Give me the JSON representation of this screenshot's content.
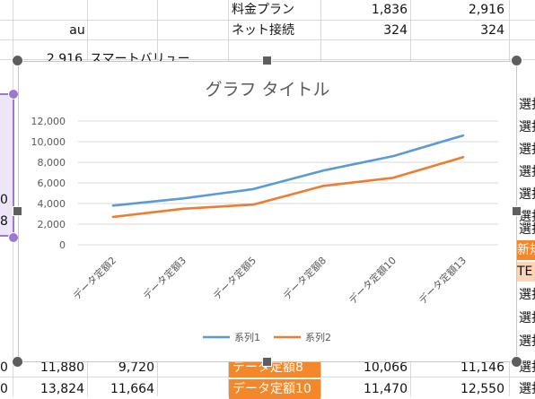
{
  "sheet": {
    "top_rows": [
      {
        "c3": "料金プラン",
        "c4": "1,836",
        "c5": "2,916"
      },
      {
        "c1": "au",
        "c3": "ネット接続",
        "c4": "324",
        "c5": "324"
      }
    ],
    "partial_row": {
      "c1": "2,916",
      "c2": "スマートバリュー"
    },
    "left_fragments": [
      "0",
      "8"
    ],
    "right_column": [
      "選択",
      "選択",
      "選択",
      "選択",
      "選択",
      "選択",
      "選択",
      "新規",
      "TE",
      "選択",
      "選択",
      "選択",
      "選択",
      "選択"
    ],
    "bottom_rows": [
      {
        "c0": "0",
        "c1": "11,880",
        "c2": "9,720",
        "c3": "データ定額8",
        "c4": "10,066",
        "c5": "11,146",
        "c6": "選択"
      },
      {
        "c0": "0",
        "c1": "13,824",
        "c2": "11,664",
        "c3": "データ定額10",
        "c4": "11,470",
        "c5": "12,550",
        "c6": "選択"
      }
    ]
  },
  "colors": {
    "series1": "#5b9bd5",
    "series2": "#ed7d31",
    "orange_cell": "#f4872a",
    "peach_cell": "#fbd5b5",
    "selection": "#9a7ad0"
  },
  "chart_data": {
    "type": "line",
    "title": "グラフ タイトル",
    "categories": [
      "データ定額2",
      "データ定額3",
      "データ定額5",
      "データ定額8",
      "データ定額10",
      "データ定額13"
    ],
    "series": [
      {
        "name": "系列1",
        "values": [
          3800,
          4500,
          5400,
          7200,
          8600,
          10600
        ]
      },
      {
        "name": "系列2",
        "values": [
          2700,
          3500,
          3900,
          5700,
          6500,
          8500
        ]
      }
    ],
    "yticks": [
      "12,000",
      "10,000",
      "8,000",
      "6,000",
      "4,000",
      "2,000",
      "0"
    ],
    "ylim": [
      0,
      12000
    ],
    "grid": true,
    "legend": "bottom"
  }
}
